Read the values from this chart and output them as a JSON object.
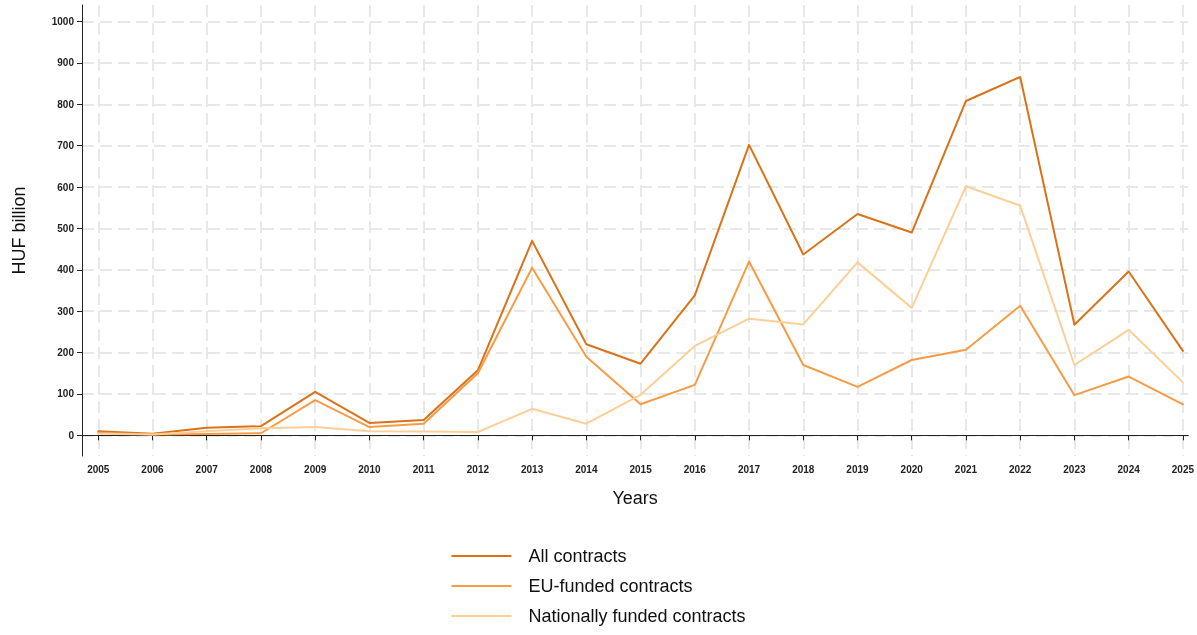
{
  "chart_data": {
    "type": "line",
    "xlabel": "Years",
    "ylabel": "HUF billion",
    "x": [
      2005,
      2006,
      2007,
      2008,
      2009,
      2010,
      2011,
      2012,
      2013,
      2014,
      2015,
      2016,
      2017,
      2018,
      2019,
      2020,
      2021,
      2022,
      2023,
      2024,
      2025
    ],
    "series": [
      {
        "name": "All contracts",
        "color": "#d9731a",
        "values": [
          10,
          4,
          18,
          22,
          105,
          30,
          37,
          157,
          470,
          220,
          173,
          338,
          702,
          437,
          535,
          490,
          808,
          866,
          267,
          396,
          204
        ]
      },
      {
        "name": "EU-funded contracts",
        "color": "#f79b45",
        "values": [
          6,
          2,
          3,
          5,
          85,
          20,
          28,
          150,
          405,
          190,
          75,
          122,
          420,
          170,
          117,
          182,
          207,
          313,
          97,
          142,
          75
        ]
      },
      {
        "name": "Nationally funded contracts",
        "color": "#fdcf98",
        "values": [
          4,
          2,
          10,
          17,
          20,
          10,
          9,
          8,
          64,
          28,
          98,
          216,
          282,
          268,
          418,
          308,
          602,
          555,
          170,
          255,
          128
        ]
      }
    ],
    "xlim": [
      2004.7,
      2025.1
    ],
    "xticks": [
      2005,
      2006,
      2007,
      2008,
      2009,
      2010,
      2011,
      2012,
      2013,
      2014,
      2015,
      2016,
      2017,
      2018,
      2019,
      2020,
      2021,
      2022,
      2023,
      2024,
      2025
    ],
    "ylim": [
      -50,
      1040
    ],
    "yticks": [
      0,
      100,
      200,
      300,
      400,
      500,
      600,
      700,
      800,
      900,
      1000
    ],
    "grid": true,
    "legend": "bottom",
    "marker": "none",
    "line_style": "solid"
  }
}
